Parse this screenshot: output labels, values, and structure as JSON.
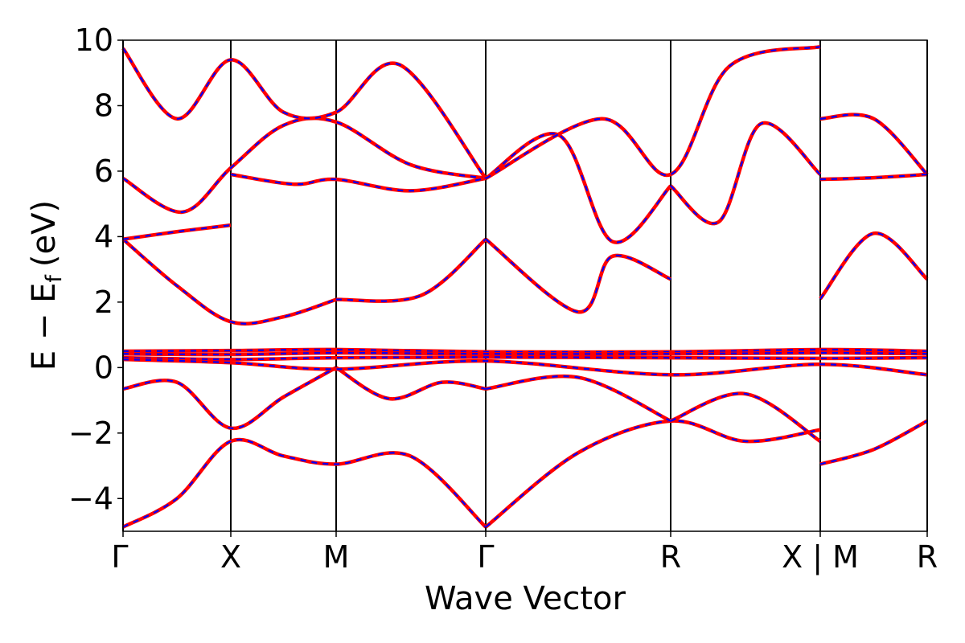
{
  "chart_data": {
    "type": "line",
    "xlabel": "Wave Vector",
    "ylabel": "E − E",
    "ylabel_subscript": "f",
    "ylabel_unit": "(eV)",
    "ylim": [
      -5,
      10
    ],
    "yticks": [
      -4,
      -2,
      0,
      2,
      4,
      6,
      8,
      10
    ],
    "ytick_labels": [
      "−4",
      "−2",
      "0",
      "2",
      "4",
      "6",
      "8",
      "10"
    ],
    "xlim": [
      0,
      7.6
    ],
    "kpoints": [
      {
        "x": 0,
        "label": "Γ"
      },
      {
        "x": 1.0,
        "label": "X"
      },
      {
        "x": 2.0,
        "label": "M"
      },
      {
        "x": 3.414,
        "label": "Γ"
      },
      {
        "x": 5.146,
        "label": "R"
      },
      {
        "x": 6.56,
        "label": "X | M"
      },
      {
        "x": 7.56,
        "label": "R"
      }
    ],
    "colors": {
      "solid": "#ff0000",
      "dashed": "#0000ff"
    },
    "bands": [
      {
        "x": [
          0,
          0.5,
          1.0,
          1.5,
          2.0,
          2.7,
          3.414
        ],
        "y": [
          -4.87,
          -4.0,
          -2.25,
          -2.7,
          -2.95,
          -2.7,
          -4.87
        ]
      },
      {
        "x": [
          3.414,
          4.28,
          5.146,
          5.85,
          6.56
        ],
        "y": [
          -4.87,
          -2.6,
          -1.63,
          -2.25,
          -1.9
        ]
      },
      {
        "x": [
          6.56,
          7.06,
          7.56
        ],
        "y": [
          -2.95,
          -2.5,
          -1.63
        ]
      },
      {
        "x": [
          0,
          0.5,
          1.0,
          1.5,
          2.0
        ],
        "y": [
          -0.65,
          -0.45,
          -1.85,
          -0.9,
          0.0
        ]
      },
      {
        "x": [
          2.0,
          2.5,
          3.0,
          3.414
        ],
        "y": [
          0.0,
          -0.95,
          -0.45,
          -0.65
        ]
      },
      {
        "x": [
          3.414,
          4.28,
          5.146
        ],
        "y": [
          -0.65,
          -0.3,
          -1.63
        ]
      },
      {
        "x": [
          5.146,
          5.85,
          6.56
        ],
        "y": [
          -1.63,
          -0.8,
          -2.25
        ]
      },
      {
        "x": [
          0,
          0.5,
          1.0,
          1.5,
          2.0
        ],
        "y": [
          3.92,
          2.5,
          1.4,
          1.55,
          2.08
        ]
      },
      {
        "x": [
          2.0,
          2.8,
          3.414
        ],
        "y": [
          2.08,
          2.2,
          3.92
        ]
      },
      {
        "x": [
          3.414,
          4.28,
          4.6,
          5.146
        ],
        "y": [
          3.92,
          1.7,
          3.4,
          2.7
        ]
      },
      {
        "x": [
          0,
          0.5,
          1.0
        ],
        "y": [
          3.92,
          4.15,
          4.35
        ]
      },
      {
        "x": [
          0,
          0.55,
          1.0,
          1.5,
          2.0,
          2.7,
          3.414
        ],
        "y": [
          5.78,
          4.75,
          6.1,
          7.4,
          7.5,
          6.2,
          5.78
        ]
      },
      {
        "x": [
          1.0,
          1.6,
          2.0,
          2.7,
          3.414
        ],
        "y": [
          5.9,
          5.6,
          5.75,
          5.4,
          5.78
        ]
      },
      {
        "x": [
          3.414,
          4.1,
          4.6,
          5.146
        ],
        "y": [
          5.78,
          7.1,
          3.85,
          5.55
        ]
      },
      {
        "x": [
          5.146,
          5.6,
          6.0,
          6.56
        ],
        "y": [
          5.55,
          4.45,
          7.45,
          5.9
        ]
      },
      {
        "x": [
          0,
          0.5,
          1.0,
          1.5,
          2.0,
          2.6,
          3.414
        ],
        "y": [
          9.75,
          7.6,
          9.4,
          7.8,
          7.8,
          9.25,
          5.78
        ]
      },
      {
        "x": [
          3.414,
          4.5,
          5.146,
          5.7,
          6.56
        ],
        "y": [
          5.78,
          7.6,
          5.9,
          9.2,
          9.8
        ]
      },
      {
        "x": [
          6.56,
          7.06,
          7.56
        ],
        "y": [
          7.6,
          7.6,
          5.9
        ]
      },
      {
        "x": [
          6.56,
          7.06,
          7.56
        ],
        "y": [
          5.75,
          5.8,
          5.9
        ]
      },
      {
        "x": [
          6.56,
          7.06,
          7.56
        ],
        "y": [
          2.1,
          4.1,
          2.7
        ]
      },
      {
        "x": [
          0,
          1.0,
          2.0,
          3.414,
          5.146,
          6.56,
          7.56
        ],
        "y": [
          0.5,
          0.52,
          0.55,
          0.48,
          0.48,
          0.55,
          0.5
        ]
      },
      {
        "x": [
          0,
          1.0,
          2.0,
          3.414,
          5.146,
          6.56,
          7.56
        ],
        "y": [
          0.42,
          0.4,
          0.45,
          0.42,
          0.42,
          0.45,
          0.42
        ]
      },
      {
        "x": [
          0,
          1.0,
          2.0,
          3.414,
          5.146,
          6.56,
          7.56
        ],
        "y": [
          0.3,
          0.25,
          0.3,
          0.32,
          0.3,
          0.28,
          0.3
        ]
      },
      {
        "x": [
          0,
          1.0,
          2.0,
          3.414,
          5.146,
          6.56,
          7.56
        ],
        "y": [
          0.25,
          0.15,
          -0.05,
          0.2,
          -0.22,
          0.1,
          -0.22
        ]
      }
    ]
  }
}
